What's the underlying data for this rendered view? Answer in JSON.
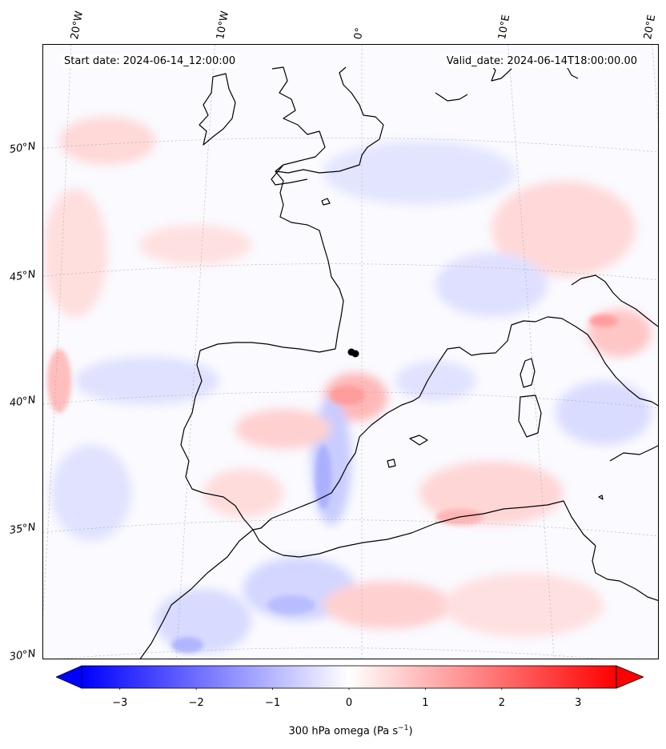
{
  "header": {
    "start_date": "Start date: 2024-06-14_12:00:00",
    "valid_date": "Valid_date: 2024-06-14T18:00:00.00"
  },
  "map": {
    "field": "300 hPa omega",
    "region": "Western Europe / Iberia / Western Mediterranean",
    "lon_labels": [
      "20°W",
      "10°W",
      "0°",
      "10°E",
      "20°E"
    ],
    "lat_labels": [
      "50°N",
      "45°N",
      "40°N",
      "35°N",
      "30°N"
    ],
    "gridlines": "dashed light grey",
    "coastlines": "black",
    "colors": {
      "positive": "#ff0000",
      "negative": "#0000ff",
      "neutral": "#ffffff",
      "coast": "#000000"
    }
  },
  "colorbar": {
    "ticks": [
      "−3",
      "−2",
      "−1",
      "0",
      "1",
      "2",
      "3"
    ],
    "tick_values": [
      -3,
      -2,
      -1,
      0,
      1,
      2,
      3
    ],
    "range": [
      -3.5,
      3.5
    ],
    "colormap": "bwr",
    "extend": "both",
    "label_main": "300 hPa omega (Pa s",
    "label_exp": "−1",
    "label_close": ")"
  }
}
